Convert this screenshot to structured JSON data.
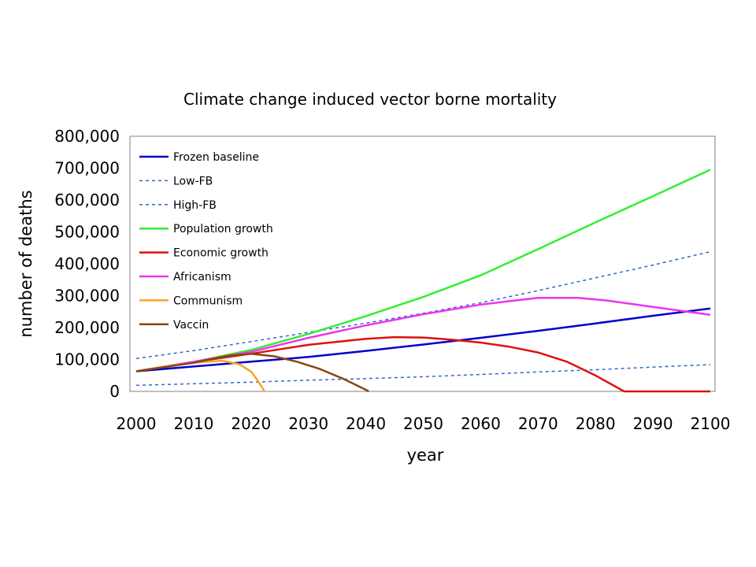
{
  "chart_data": {
    "type": "line",
    "title": "Climate change induced vector borne mortality",
    "xlabel": "year",
    "ylabel": "number of deaths",
    "xlim": [
      2000,
      2100
    ],
    "ylim": [
      0,
      800000
    ],
    "x_ticks": [
      2000,
      2010,
      2020,
      2030,
      2040,
      2050,
      2060,
      2070,
      2080,
      2090,
      2100
    ],
    "y_ticks": [
      "0",
      "100,000",
      "200,000",
      "300,000",
      "400,000",
      "500,000",
      "600,000",
      "700,000",
      "800,000"
    ],
    "y_tick_values": [
      0,
      100000,
      200000,
      300000,
      400000,
      500000,
      600000,
      700000,
      800000
    ],
    "grid": false,
    "legend_position": "top-left",
    "series": [
      {
        "name": "Frozen baseline",
        "color": "#0000cc",
        "style": "solid",
        "points": [
          [
            2000,
            63000
          ],
          [
            2010,
            78000
          ],
          [
            2020,
            93000
          ],
          [
            2030,
            108000
          ],
          [
            2040,
            127000
          ],
          [
            2050,
            147000
          ],
          [
            2060,
            168000
          ],
          [
            2070,
            190000
          ],
          [
            2080,
            213000
          ],
          [
            2090,
            237000
          ],
          [
            2100,
            260000
          ]
        ]
      },
      {
        "name": "Low-FB",
        "color": "#3366cc",
        "style": "dashed",
        "points": [
          [
            2000,
            19000
          ],
          [
            2010,
            24000
          ],
          [
            2020,
            29000
          ],
          [
            2030,
            35000
          ],
          [
            2040,
            40000
          ],
          [
            2050,
            46000
          ],
          [
            2060,
            53000
          ],
          [
            2070,
            61000
          ],
          [
            2080,
            68000
          ],
          [
            2090,
            76000
          ],
          [
            2100,
            84000
          ]
        ]
      },
      {
        "name": "High-FB",
        "color": "#3366cc",
        "style": "dashed",
        "points": [
          [
            2000,
            103000
          ],
          [
            2010,
            128000
          ],
          [
            2020,
            156000
          ],
          [
            2030,
            185000
          ],
          [
            2040,
            214000
          ],
          [
            2050,
            245000
          ],
          [
            2060,
            278000
          ],
          [
            2070,
            316000
          ],
          [
            2080,
            356000
          ],
          [
            2090,
            396000
          ],
          [
            2100,
            438000
          ]
        ]
      },
      {
        "name": "Population growth",
        "color": "#33ee33",
        "style": "solid",
        "points": [
          [
            2000,
            63000
          ],
          [
            2010,
            92000
          ],
          [
            2020,
            130000
          ],
          [
            2030,
            180000
          ],
          [
            2040,
            236000
          ],
          [
            2050,
            296000
          ],
          [
            2060,
            364000
          ],
          [
            2070,
            446000
          ],
          [
            2080,
            530000
          ],
          [
            2090,
            612000
          ],
          [
            2100,
            695000
          ]
        ]
      },
      {
        "name": "Economic growth",
        "color": "#dd1111",
        "style": "solid",
        "points": [
          [
            2000,
            63000
          ],
          [
            2010,
            92000
          ],
          [
            2020,
            118000
          ],
          [
            2030,
            146000
          ],
          [
            2040,
            165000
          ],
          [
            2045,
            170000
          ],
          [
            2050,
            169000
          ],
          [
            2055,
            162000
          ],
          [
            2060,
            153000
          ],
          [
            2065,
            140000
          ],
          [
            2070,
            122000
          ],
          [
            2075,
            93000
          ],
          [
            2080,
            50000
          ],
          [
            2085,
            0
          ],
          [
            2100,
            0
          ]
        ]
      },
      {
        "name": "Africanism",
        "color": "#ee33ee",
        "style": "solid",
        "points": [
          [
            2000,
            63000
          ],
          [
            2010,
            93000
          ],
          [
            2020,
            124000
          ],
          [
            2030,
            168000
          ],
          [
            2040,
            207000
          ],
          [
            2050,
            242000
          ],
          [
            2060,
            272000
          ],
          [
            2065,
            283000
          ],
          [
            2070,
            293000
          ],
          [
            2077,
            293000
          ],
          [
            2082,
            285000
          ],
          [
            2090,
            265000
          ],
          [
            2100,
            240000
          ]
        ]
      },
      {
        "name": "Communism",
        "color": "#f5a623",
        "style": "solid",
        "points": [
          [
            2000,
            63000
          ],
          [
            2005,
            78000
          ],
          [
            2010,
            90000
          ],
          [
            2015,
            96000
          ],
          [
            2018,
            85000
          ],
          [
            2020,
            62000
          ],
          [
            2021,
            38000
          ],
          [
            2022,
            10000
          ],
          [
            2022.3,
            0
          ]
        ]
      },
      {
        "name": "Vaccin",
        "color": "#8b4513",
        "style": "solid",
        "points": [
          [
            2000,
            63000
          ],
          [
            2010,
            90000
          ],
          [
            2016,
            112000
          ],
          [
            2020,
            118000
          ],
          [
            2024,
            110000
          ],
          [
            2028,
            93000
          ],
          [
            2032,
            70000
          ],
          [
            2036,
            40000
          ],
          [
            2040,
            5000
          ],
          [
            2040.5,
            0
          ]
        ]
      }
    ]
  }
}
